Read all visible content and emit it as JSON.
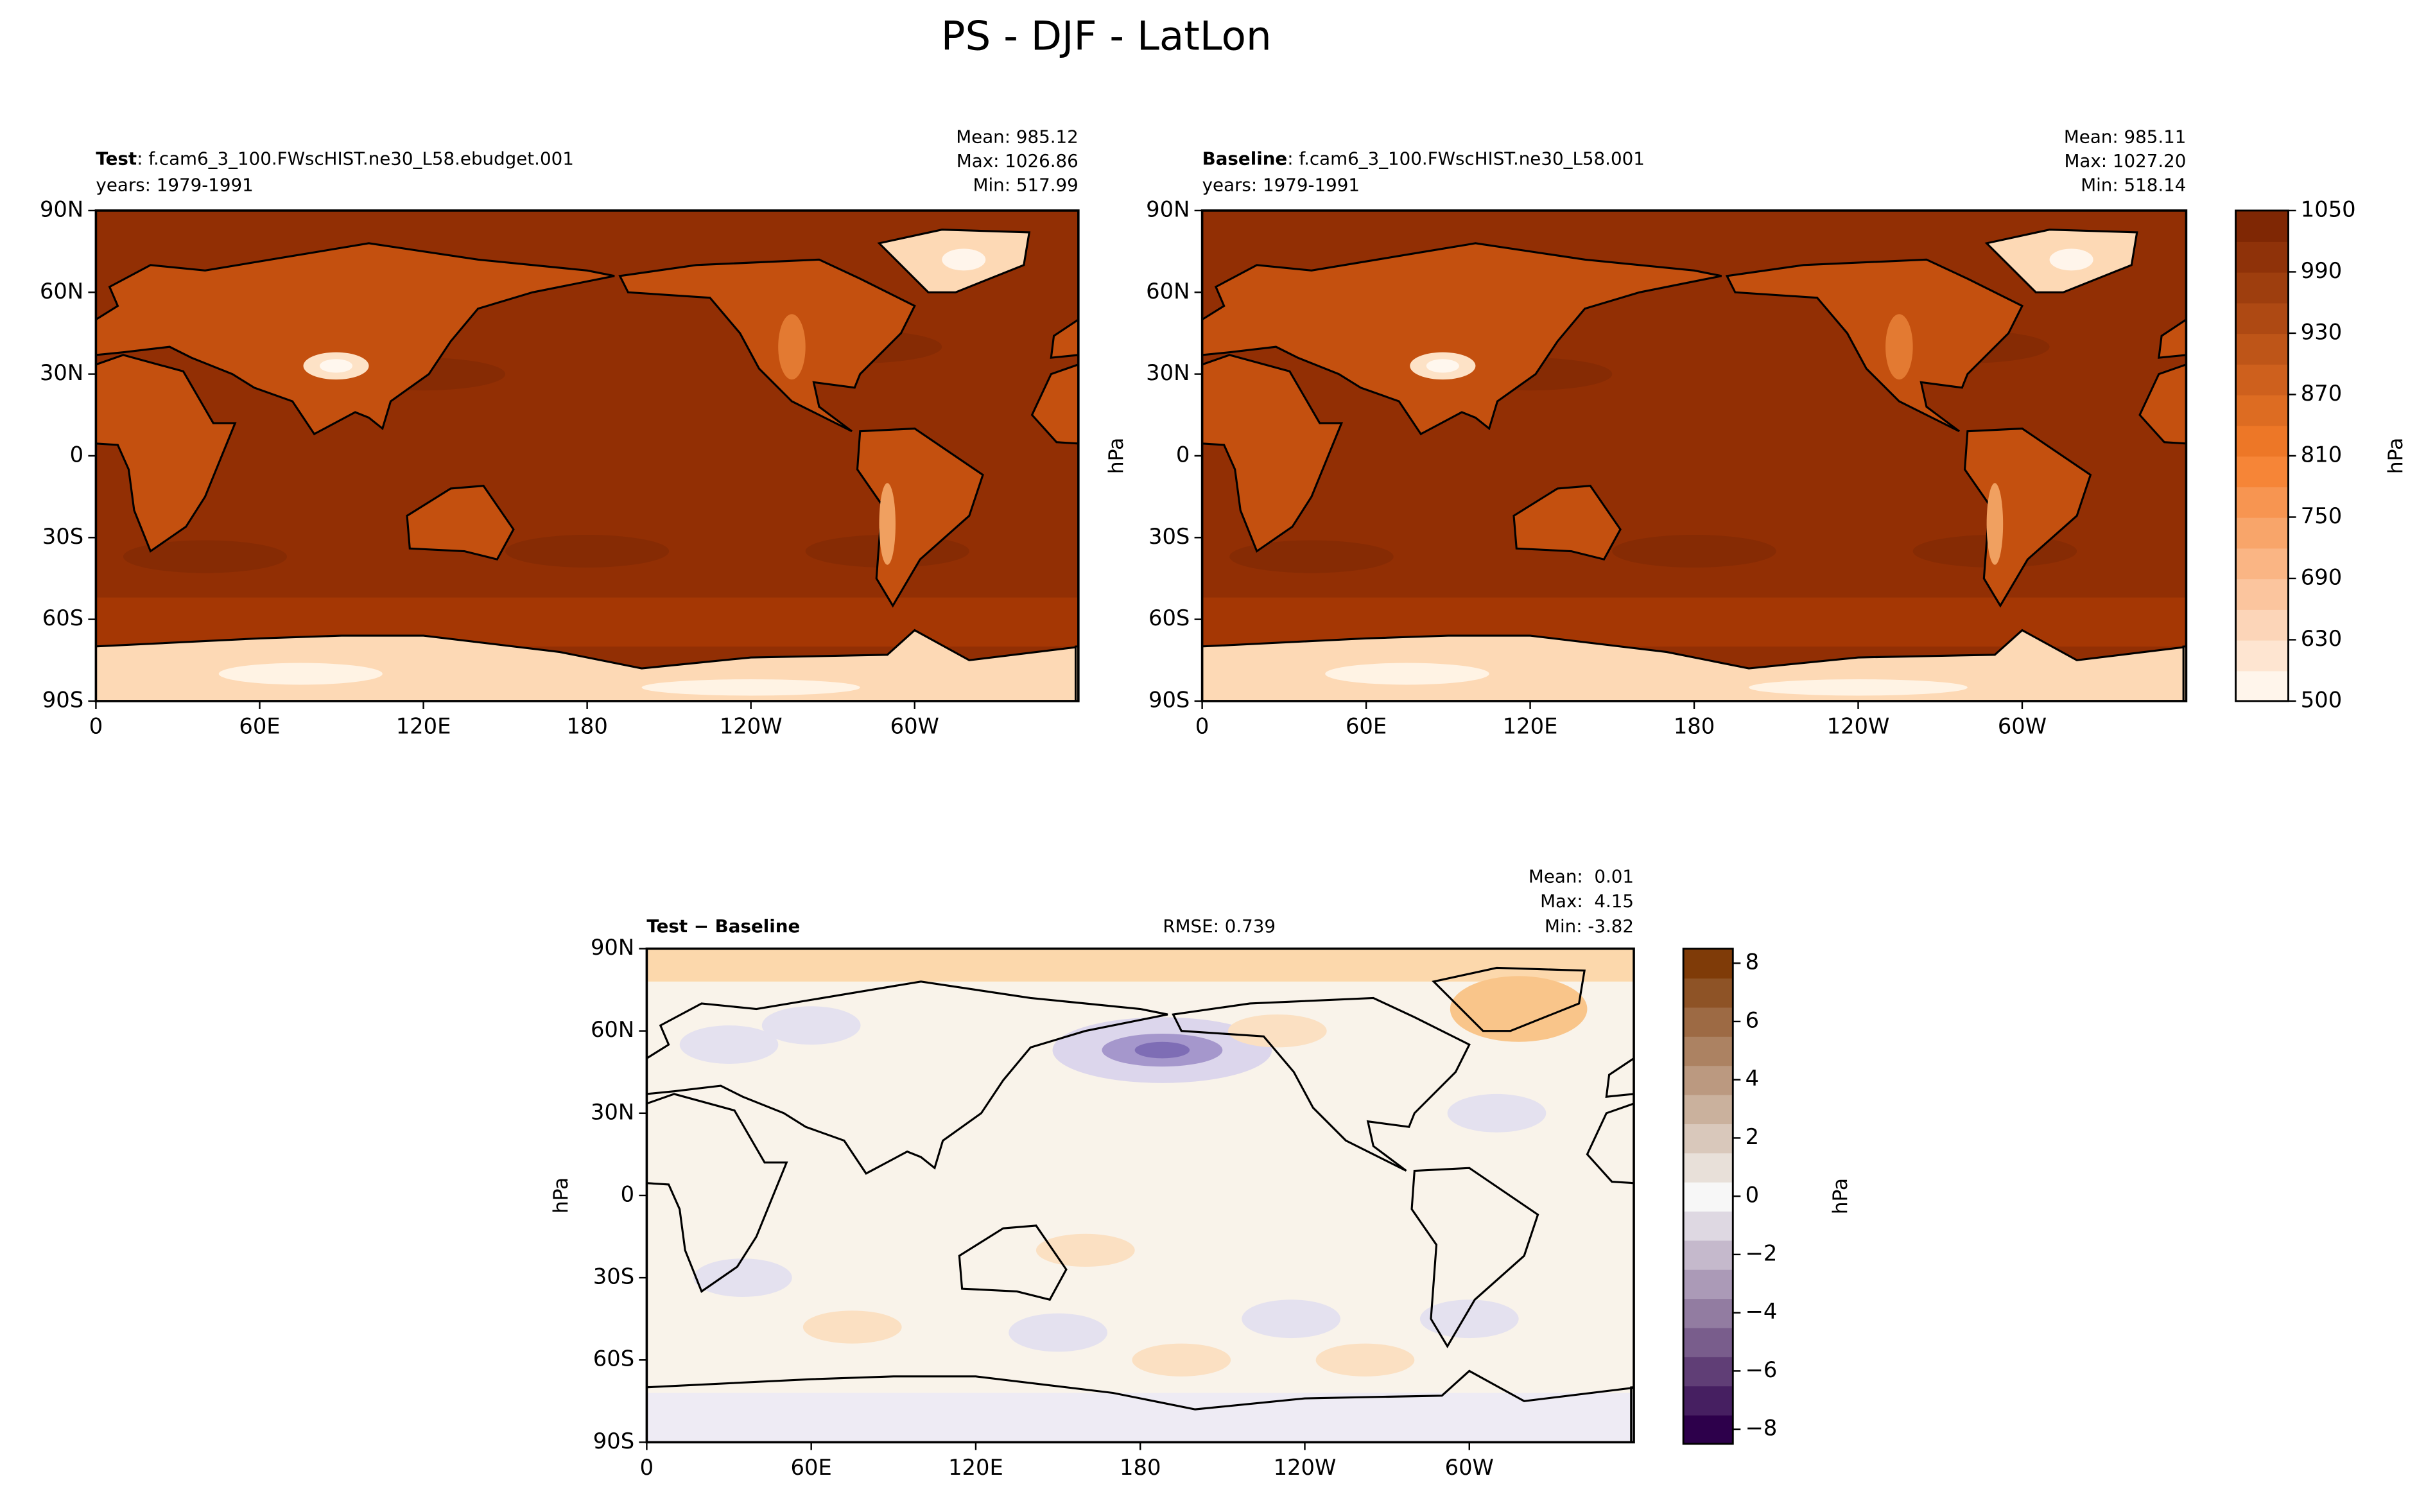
{
  "title": "PS - DJF - LatLon",
  "chart_data": [
    {
      "type": "contour",
      "label": "Test",
      "case": ": f.cam6_3_100.FWscHIST.ne30_L58.ebudget.001",
      "years": "years: 1979-1991",
      "stats": [
        "Mean: 985.12",
        "Max: 1026.86",
        "Min: 517.99"
      ],
      "xlim": [
        0,
        360
      ],
      "ylim": [
        -90,
        90
      ],
      "xticks": [
        0,
        {
          "value": 60,
          "label": "60E"
        },
        {
          "value": 120,
          "label": "120E"
        },
        180,
        {
          "value": 240,
          "label": "120W"
        },
        {
          "value": 300,
          "label": "60W"
        }
      ],
      "yticks": [
        {
          "value": -90,
          "label": "90S"
        },
        {
          "value": -60,
          "label": "60S"
        },
        {
          "value": -30,
          "label": "30S"
        },
        0,
        {
          "value": 30,
          "label": "30N"
        },
        {
          "value": 60,
          "label": "60N"
        },
        {
          "value": 90,
          "label": "90N"
        }
      ],
      "palette": "oranges"
    },
    {
      "type": "contour",
      "label": "Baseline",
      "case": ": f.cam6_3_100.FWscHIST.ne30_L58.001",
      "years": "years: 1979-1991",
      "stats": [
        "Mean: 985.11",
        "Max: 1027.20",
        "Min: 518.14"
      ],
      "xlim": [
        0,
        360
      ],
      "ylim": [
        -90,
        90
      ],
      "ylabel": "hPa",
      "xticks": [
        0,
        {
          "value": 60,
          "label": "60E"
        },
        {
          "value": 120,
          "label": "120E"
        },
        180,
        {
          "value": 240,
          "label": "120W"
        },
        {
          "value": 300,
          "label": "60W"
        }
      ],
      "yticks": [
        {
          "value": -90,
          "label": "90S"
        },
        {
          "value": -60,
          "label": "60S"
        },
        {
          "value": -30,
          "label": "30S"
        },
        0,
        {
          "value": 30,
          "label": "30N"
        },
        {
          "value": 60,
          "label": "60N"
        },
        {
          "value": 90,
          "label": "90N"
        }
      ],
      "palette": "oranges",
      "colorbar": {
        "label": "hPa",
        "levels": [
          500,
          600,
          630,
          660,
          690,
          720,
          750,
          780,
          810,
          840,
          870,
          900,
          930,
          960,
          990,
          1020,
          1050
        ],
        "ticks": [
          500,
          630,
          690,
          750,
          810,
          870,
          930,
          990,
          1050
        ],
        "colors": [
          "#fff5eb",
          "#f57d2a",
          "#7f2704"
        ]
      }
    },
    {
      "type": "contour",
      "label": "Test − Baseline",
      "rmse": "RMSE: 0.739",
      "stats": [
        "Mean:  0.01",
        "Max:  4.15",
        "Min: -3.82"
      ],
      "xlim": [
        0,
        360
      ],
      "ylim": [
        -90,
        90
      ],
      "ylabel": "hPa",
      "xticks": [
        0,
        {
          "value": 60,
          "label": "60E"
        },
        {
          "value": 120,
          "label": "120E"
        },
        180,
        {
          "value": 240,
          "label": "120W"
        },
        {
          "value": 300,
          "label": "60W"
        }
      ],
      "yticks": [
        {
          "value": -90,
          "label": "90S"
        },
        {
          "value": -60,
          "label": "60S"
        },
        {
          "value": -30,
          "label": "30S"
        },
        0,
        {
          "value": 30,
          "label": "30N"
        },
        {
          "value": 60,
          "label": "60N"
        },
        {
          "value": 90,
          "label": "90N"
        }
      ],
      "palette": "diff",
      "colorbar": {
        "label": "hPa",
        "lim": [
          -8.5,
          8.5
        ],
        "ticks": [
          {
            "value": -8,
            "label": "−8"
          },
          {
            "value": -6,
            "label": "−6"
          },
          {
            "value": -4,
            "label": "−4"
          },
          {
            "value": -2,
            "label": "−2"
          },
          0,
          2,
          4,
          6,
          8
        ],
        "colors": [
          "#2d004b",
          "#f7f7f7",
          "#7f3b08"
        ]
      }
    }
  ]
}
